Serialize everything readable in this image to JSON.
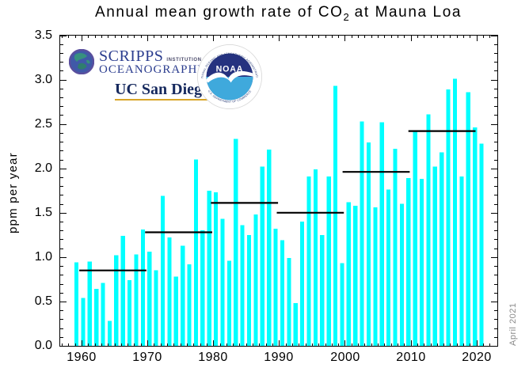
{
  "title": {
    "prefix": "Annual mean growth rate of CO",
    "sub": "2",
    "suffix": " at Mauna Loa"
  },
  "note": "April 2021",
  "logos": {
    "scripps": {
      "name": "SCRIPPS",
      "institution_of": "INSTITUTION OF",
      "oceanography": "OCEANOGRAPHY",
      "ucsd": "UC San Diego"
    },
    "noaa": {
      "acronym": "NOAA",
      "rim_top": "NATIONAL OCEANIC AND ATMOSPHERIC ADMINISTRATION",
      "rim_bottom": "U.S. DEPARTMENT OF COMMERCE"
    }
  },
  "chart_data": {
    "type": "bar",
    "title": "Annual mean growth rate of CO2 at Mauna Loa",
    "xlabel": "",
    "ylabel": "ppm per year",
    "ylim": [
      0,
      3.5
    ],
    "xlim": [
      1956.6,
      2023.2
    ],
    "grid": false,
    "legend": "none",
    "bar_color": "#00ffff",
    "axis_color": "#000000",
    "mean_line_color": "#000000",
    "note_color": "#8a8a8a",
    "x_tick_labels": [
      "1960",
      "1970",
      "1980",
      "1990",
      "2000",
      "2010",
      "2020"
    ],
    "y_tick_labels": [
      "0.0",
      "0.5",
      "1.0",
      "1.5",
      "2.0",
      "2.5",
      "3.0",
      "3.5"
    ],
    "x_tick_step": 10,
    "x_minor_step": 1,
    "y_tick_step": 0.5,
    "y_minor_step": 0.1,
    "years": [
      1959,
      1960,
      1961,
      1962,
      1963,
      1964,
      1965,
      1966,
      1967,
      1968,
      1969,
      1970,
      1971,
      1972,
      1973,
      1974,
      1975,
      1976,
      1977,
      1978,
      1979,
      1980,
      1981,
      1982,
      1983,
      1984,
      1985,
      1986,
      1987,
      1988,
      1989,
      1990,
      1991,
      1992,
      1993,
      1994,
      1995,
      1996,
      1997,
      1998,
      1999,
      2000,
      2001,
      2002,
      2003,
      2004,
      2005,
      2006,
      2007,
      2008,
      2009,
      2010,
      2011,
      2012,
      2013,
      2014,
      2015,
      2016,
      2017,
      2018,
      2019,
      2020
    ],
    "values": [
      0.94,
      0.54,
      0.95,
      0.64,
      0.71,
      0.28,
      1.02,
      1.24,
      0.74,
      1.03,
      1.31,
      1.06,
      0.85,
      1.69,
      1.22,
      0.78,
      1.13,
      0.92,
      2.1,
      1.3,
      1.75,
      1.73,
      1.43,
      0.96,
      2.33,
      1.36,
      1.25,
      1.48,
      2.02,
      2.21,
      1.32,
      1.19,
      0.99,
      0.48,
      1.4,
      1.91,
      1.99,
      1.25,
      1.91,
      2.93,
      0.93,
      1.62,
      1.58,
      2.53,
      2.29,
      1.56,
      2.52,
      1.76,
      2.22,
      1.6,
      1.89,
      2.42,
      1.88,
      2.61,
      2.02,
      2.18,
      2.89,
      3.01,
      1.91,
      2.86,
      2.46,
      2.28
    ],
    "decadal_means": [
      {
        "decade": "1960s",
        "start_year": 1960,
        "value": 0.85
      },
      {
        "decade": "1970s",
        "start_year": 1970,
        "value": 1.28
      },
      {
        "decade": "1980s",
        "start_year": 1980,
        "value": 1.61
      },
      {
        "decade": "1990s",
        "start_year": 1990,
        "value": 1.5
      },
      {
        "decade": "2000s",
        "start_year": 2000,
        "value": 1.96
      },
      {
        "decade": "2010s",
        "start_year": 2010,
        "value": 2.42
      }
    ]
  }
}
